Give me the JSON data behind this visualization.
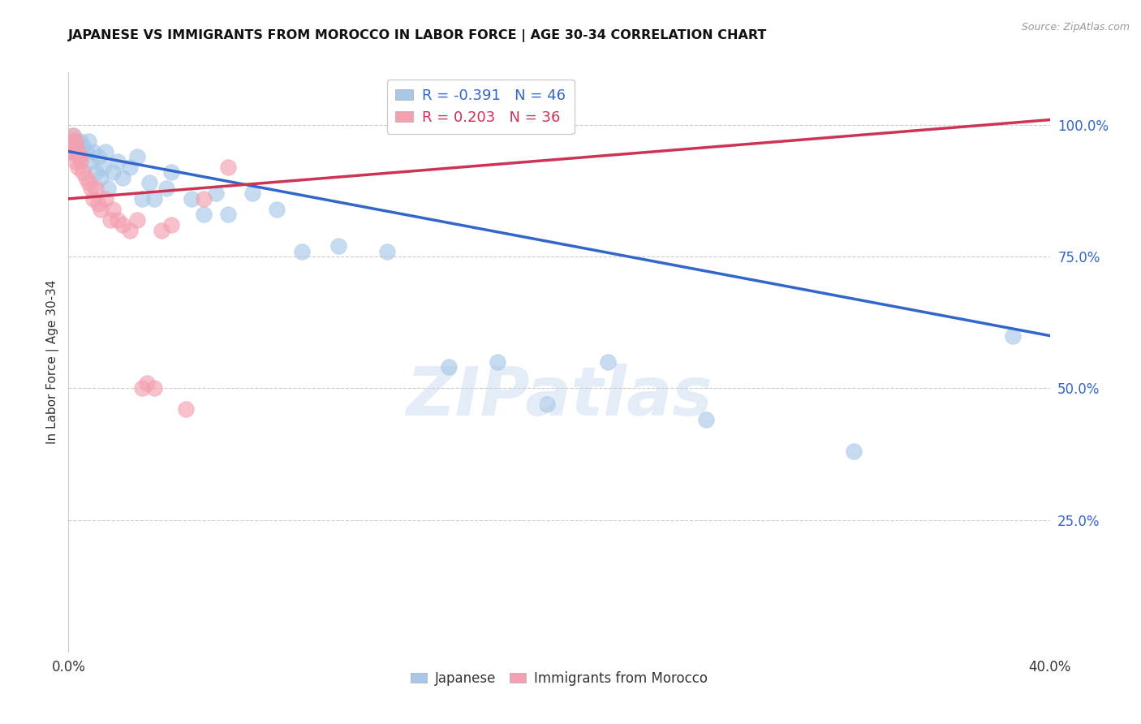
{
  "title": "JAPANESE VS IMMIGRANTS FROM MOROCCO IN LABOR FORCE | AGE 30-34 CORRELATION CHART",
  "source": "Source: ZipAtlas.com",
  "ylabel": "In Labor Force | Age 30-34",
  "xlim": [
    0.0,
    0.4
  ],
  "ylim": [
    0.0,
    1.1
  ],
  "watermark": "ZIPatlas",
  "legend_r_blue": "-0.391",
  "legend_n_blue": "46",
  "legend_r_pink": "0.203",
  "legend_n_pink": "36",
  "legend_label_blue": "Japanese",
  "legend_label_pink": "Immigrants from Morocco",
  "blue_color": "#a8c8e8",
  "pink_color": "#f4a0b0",
  "trend_blue_color": "#3366cc",
  "trend_pink_color": "#cc3355",
  "blue_scatter_x": [
    0.001,
    0.002,
    0.002,
    0.003,
    0.003,
    0.004,
    0.005,
    0.005,
    0.006,
    0.006,
    0.007,
    0.008,
    0.009,
    0.01,
    0.011,
    0.012,
    0.013,
    0.014,
    0.015,
    0.016,
    0.018,
    0.02,
    0.022,
    0.025,
    0.028,
    0.03,
    0.033,
    0.035,
    0.04,
    0.042,
    0.05,
    0.055,
    0.06,
    0.065,
    0.075,
    0.085,
    0.095,
    0.11,
    0.13,
    0.155,
    0.175,
    0.195,
    0.22,
    0.26,
    0.32,
    0.385
  ],
  "blue_scatter_y": [
    0.96,
    0.98,
    0.95,
    0.97,
    0.96,
    0.95,
    0.97,
    0.94,
    0.96,
    0.95,
    0.95,
    0.97,
    0.93,
    0.95,
    0.91,
    0.94,
    0.9,
    0.92,
    0.95,
    0.88,
    0.91,
    0.93,
    0.9,
    0.92,
    0.94,
    0.86,
    0.89,
    0.86,
    0.88,
    0.91,
    0.86,
    0.83,
    0.87,
    0.83,
    0.87,
    0.84,
    0.76,
    0.77,
    0.76,
    0.54,
    0.55,
    0.47,
    0.55,
    0.44,
    0.38,
    0.6
  ],
  "pink_scatter_x": [
    0.001,
    0.001,
    0.001,
    0.002,
    0.002,
    0.002,
    0.003,
    0.003,
    0.003,
    0.004,
    0.004,
    0.005,
    0.005,
    0.006,
    0.007,
    0.008,
    0.009,
    0.01,
    0.011,
    0.012,
    0.013,
    0.015,
    0.017,
    0.018,
    0.02,
    0.022,
    0.025,
    0.028,
    0.03,
    0.032,
    0.035,
    0.038,
    0.042,
    0.048,
    0.055,
    0.065
  ],
  "pink_scatter_y": [
    0.95,
    0.96,
    0.97,
    0.95,
    0.96,
    0.98,
    0.93,
    0.96,
    0.97,
    0.92,
    0.95,
    0.93,
    0.94,
    0.91,
    0.9,
    0.89,
    0.88,
    0.86,
    0.88,
    0.85,
    0.84,
    0.86,
    0.82,
    0.84,
    0.82,
    0.81,
    0.8,
    0.82,
    0.5,
    0.51,
    0.5,
    0.8,
    0.81,
    0.46,
    0.86,
    0.92
  ],
  "background_color": "#ffffff",
  "grid_color": "#cccccc"
}
